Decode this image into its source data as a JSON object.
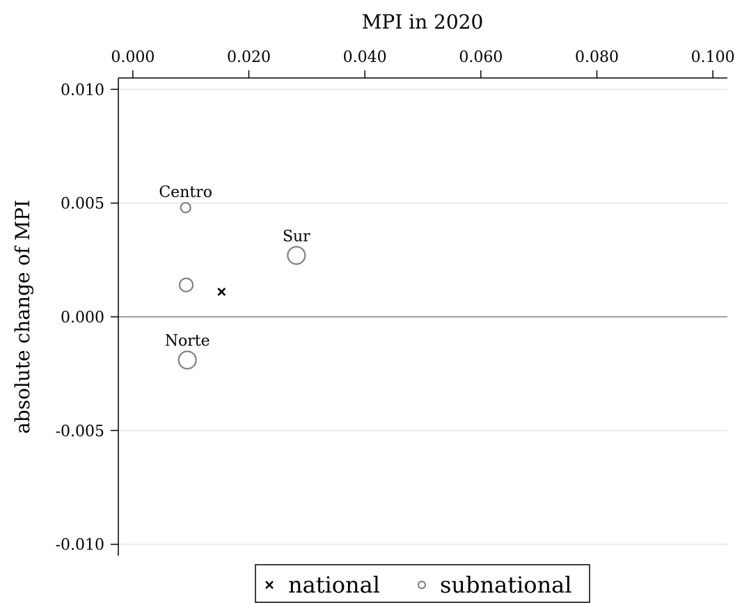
{
  "chart_data": {
    "type": "scatter",
    "xlabel": "MPI in 2020",
    "ylabel": "absolute change of MPI",
    "xlim": [
      -0.0025,
      0.1025
    ],
    "ylim": [
      -0.0105,
      0.0105
    ],
    "x_ticks": [
      "0.000",
      "0.020",
      "0.040",
      "0.060",
      "0.080",
      "0.100"
    ],
    "x_tick_values": [
      0,
      0.02,
      0.04,
      0.06,
      0.08,
      0.1
    ],
    "y_ticks": [
      "0.010",
      "0.005",
      "0.000",
      "-0.005",
      "-0.010"
    ],
    "y_tick_values": [
      0.01,
      0.005,
      0,
      -0.005,
      -0.01
    ],
    "grid": "horizontal",
    "reference_line_y": 0,
    "colors": {
      "national": "#000000",
      "subnational": "#808080",
      "grid": "#ebebeb",
      "zero_line": "#808080"
    },
    "series": [
      {
        "name": "national",
        "marker": "x",
        "points": [
          {
            "x": 0.0153,
            "y": 0.0011
          }
        ]
      },
      {
        "name": "subnational",
        "marker": "hollow-circle",
        "points": [
          {
            "x": 0.0091,
            "y": 0.0048,
            "label": "Centro",
            "size": "small"
          },
          {
            "x": 0.0092,
            "y": 0.0014,
            "label": "",
            "size": "medium"
          },
          {
            "x": 0.0282,
            "y": 0.0027,
            "label": "Sur",
            "size": "large"
          },
          {
            "x": 0.0094,
            "y": -0.0019,
            "label": "Norte",
            "size": "large"
          }
        ]
      }
    ],
    "legend": {
      "placement": "bottom",
      "entries": [
        {
          "marker": "x",
          "label": "national"
        },
        {
          "marker": "hollow-circle",
          "label": "subnational"
        }
      ]
    }
  }
}
